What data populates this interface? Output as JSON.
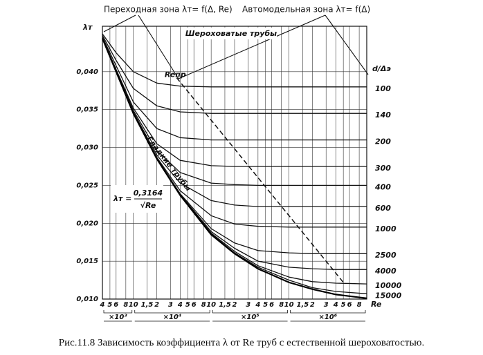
{
  "chart_data": {
    "type": "line",
    "title": "Рис.11.8 Зависимость коэффициента  λ от Re труб с естественной шероховатостью.",
    "transition_zone_label": "Переходная зона λт= f(Δ, Re)",
    "rough_zone_label": "Автомодельная зона λт= f(Δ)",
    "rough_pipes_label": "Шероховатые трубы",
    "y_label": "λт",
    "x_label": "Re",
    "legend_title": "d/Δэ",
    "formula": {
      "lhs": "λт =",
      "numerator": "0,3164",
      "denominator": "√Re"
    },
    "log_x": true,
    "grid": true,
    "xlim": [
      4000,
      10000000
    ],
    "ylim": [
      0.01,
      0.046
    ],
    "xticks": [
      {
        "value": 4000,
        "label": "4"
      },
      {
        "value": 5000,
        "label": "5"
      },
      {
        "value": 6000,
        "label": "6"
      },
      {
        "value": 8000,
        "label": "8"
      },
      {
        "value": 10000,
        "label": "10"
      },
      {
        "value": 15000,
        "label": "1,5"
      },
      {
        "value": 20000,
        "label": "2"
      },
      {
        "value": 30000,
        "label": "3"
      },
      {
        "value": 40000,
        "label": "4"
      },
      {
        "value": 50000,
        "label": "5"
      },
      {
        "value": 60000,
        "label": "6"
      },
      {
        "value": 80000,
        "label": "8"
      },
      {
        "value": 100000,
        "label": "10"
      },
      {
        "value": 150000,
        "label": "1,5"
      },
      {
        "value": 200000,
        "label": "2"
      },
      {
        "value": 300000,
        "label": "3"
      },
      {
        "value": 400000,
        "label": "4"
      },
      {
        "value": 500000,
        "label": "5"
      },
      {
        "value": 600000,
        "label": "6"
      },
      {
        "value": 800000,
        "label": "8"
      },
      {
        "value": 1000000,
        "label": "10"
      },
      {
        "value": 1500000,
        "label": "1,5"
      },
      {
        "value": 2000000,
        "label": "2"
      },
      {
        "value": 3000000,
        "label": "3"
      },
      {
        "value": 4000000,
        "label": "4"
      },
      {
        "value": 5000000,
        "label": "5"
      },
      {
        "value": 6000000,
        "label": "6"
      },
      {
        "value": 8000000,
        "label": "8"
      }
    ],
    "x_groups": [
      {
        "label": "×10³",
        "from": 4000,
        "to": 10000
      },
      {
        "label": "×10⁴",
        "from": 10000,
        "to": 100000
      },
      {
        "label": "×10⁵",
        "from": 100000,
        "to": 1000000
      },
      {
        "label": "×10⁶",
        "from": 1000000,
        "to": 10000000
      }
    ],
    "yticks": [
      {
        "value": 0.01,
        "label": "0,010"
      },
      {
        "value": 0.015,
        "label": "0,015"
      },
      {
        "value": 0.02,
        "label": "0,020"
      },
      {
        "value": 0.025,
        "label": "0,025"
      },
      {
        "value": 0.03,
        "label": "0,030"
      },
      {
        "value": 0.035,
        "label": "0,035"
      },
      {
        "value": 0.04,
        "label": "0,040"
      }
    ],
    "x": [
      4000,
      6000,
      10000,
      20000,
      40000,
      100000,
      200000,
      400000,
      1000000,
      2000000,
      4000000,
      10000000
    ],
    "series": [
      {
        "name": "100",
        "color": "#111",
        "values": [
          0.045,
          0.0425,
          0.04,
          0.0385,
          0.0381,
          0.038,
          0.038,
          0.038,
          0.038,
          0.038,
          0.038,
          0.038
        ]
      },
      {
        "name": "140",
        "color": "#111",
        "values": [
          0.0448,
          0.0415,
          0.0378,
          0.0355,
          0.0347,
          0.0345,
          0.0345,
          0.0345,
          0.0345,
          0.0345,
          0.0345,
          0.0345
        ]
      },
      {
        "name": "200",
        "color": "#111",
        "values": [
          0.0446,
          0.0408,
          0.036,
          0.0325,
          0.0313,
          0.031,
          0.031,
          0.031,
          0.031,
          0.031,
          0.031,
          0.031
        ]
      },
      {
        "name": "300",
        "color": "#111",
        "values": [
          0.0445,
          0.0403,
          0.0352,
          0.0305,
          0.0283,
          0.0276,
          0.0275,
          0.0275,
          0.0275,
          0.0275,
          0.0275,
          0.0275
        ]
      },
      {
        "name": "400",
        "color": "#111",
        "values": [
          0.0444,
          0.0402,
          0.0349,
          0.0296,
          0.0267,
          0.0253,
          0.0251,
          0.025,
          0.025,
          0.025,
          0.025,
          0.025
        ]
      },
      {
        "name": "600",
        "color": "#111",
        "values": [
          0.0444,
          0.0401,
          0.0347,
          0.029,
          0.0253,
          0.023,
          0.0224,
          0.0222,
          0.0222,
          0.0222,
          0.0222,
          0.0222
        ]
      },
      {
        "name": "1000",
        "color": "#111",
        "values": [
          0.0444,
          0.04,
          0.0346,
          0.0287,
          0.0243,
          0.021,
          0.0199,
          0.0196,
          0.0195,
          0.0195,
          0.0195,
          0.0195
        ]
      },
      {
        "name": "2500",
        "color": "#111",
        "values": [
          0.0444,
          0.04,
          0.0345,
          0.0286,
          0.0239,
          0.0193,
          0.0174,
          0.0164,
          0.0161,
          0.016,
          0.016,
          0.016
        ]
      },
      {
        "name": "4000",
        "color": "#111",
        "values": [
          0.0444,
          0.04,
          0.0345,
          0.0285,
          0.0238,
          0.0189,
          0.0167,
          0.015,
          0.0142,
          0.014,
          0.0139,
          0.0139
        ]
      },
      {
        "name": "10000",
        "color": "#111",
        "values": [
          0.0444,
          0.04,
          0.0345,
          0.0285,
          0.0237,
          0.0187,
          0.0163,
          0.0144,
          0.0129,
          0.0123,
          0.0121,
          0.012
        ]
      },
      {
        "name": "15000",
        "color": "#111",
        "values": [
          0.0444,
          0.04,
          0.0345,
          0.0285,
          0.0237,
          0.0186,
          0.0161,
          0.0142,
          0.0125,
          0.0115,
          0.011,
          0.0107
        ]
      }
    ],
    "smooth": {
      "name": "Гладкие трубы",
      "color": "#000",
      "values": [
        0.0444,
        0.04,
        0.0345,
        0.0285,
        0.0237,
        0.0185,
        0.016,
        0.014,
        0.0122,
        0.0113,
        0.0106,
        0.0101
      ]
    },
    "boundary": {
      "name": "Reпр",
      "color": "#111",
      "dashed": true,
      "x": [
        36000,
        5100000
      ],
      "values": [
        0.0392,
        0.0121
      ]
    }
  }
}
